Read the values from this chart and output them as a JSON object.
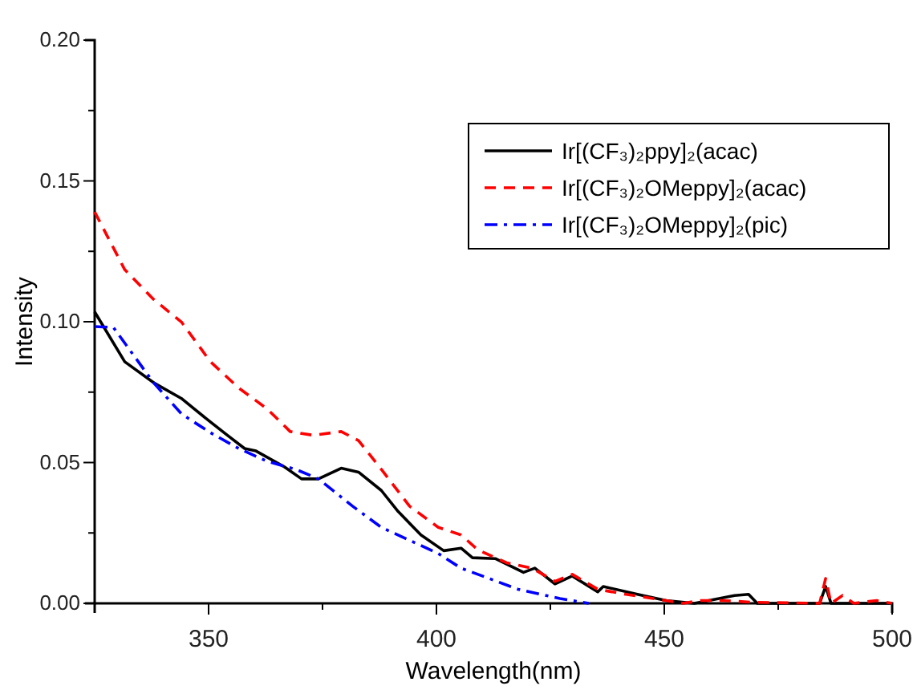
{
  "chart_data": {
    "type": "line",
    "xlabel": "Wavelength(nm)",
    "ylabel": "Intensity",
    "xlim": [
      325,
      500
    ],
    "ylim": [
      0,
      0.2
    ],
    "xticks": [
      {
        "value": 325,
        "label": null
      },
      350,
      {
        "value": 375,
        "label": null
      },
      400,
      {
        "value": 425,
        "label": null
      },
      450,
      {
        "value": 475,
        "label": null
      },
      500
    ],
    "yticks": [
      {
        "value": 0,
        "label": "0.00"
      },
      {
        "value": 0.025,
        "label": null
      },
      {
        "value": 0.05,
        "label": "0.05"
      },
      {
        "value": 0.075,
        "label": null
      },
      {
        "value": 0.1,
        "label": "0.10"
      },
      {
        "value": 0.125,
        "label": null
      },
      {
        "value": 0.15,
        "label": "0.15"
      },
      {
        "value": 0.175,
        "label": null
      },
      {
        "value": 0.2,
        "label": "0.20"
      }
    ],
    "grid": false,
    "legend": "top right",
    "marker": "none",
    "series": [
      {
        "name": "Ir[(CF₃)₂ppy]₂(acac)",
        "color": "#000000",
        "line_style": "solid",
        "x": [
          325,
          331.6,
          337.9,
          344,
          350.4,
          354.1,
          357.9,
          360.4,
          366.6,
          370.4,
          374.1,
          379.1,
          382.9,
          387.9,
          391.6,
          396.6,
          401.6,
          405.4,
          407.9,
          412.9,
          419.1,
          421.6,
          426,
          429.8,
          435.4,
          436.6,
          444.1,
          450.4,
          456.6,
          465.4,
          468.5,
          470.4,
          484.1,
          485.4,
          486.6,
          500
        ],
        "values": [
          0.1035,
          0.0858,
          0.0784,
          0.0728,
          0.0644,
          0.0597,
          0.055,
          0.0541,
          0.0485,
          0.0442,
          0.0442,
          0.048,
          0.0466,
          0.0401,
          0.0326,
          0.0243,
          0.0187,
          0.0196,
          0.0162,
          0.0159,
          0.011,
          0.0125,
          0.0069,
          0.0097,
          0.0041,
          0.006,
          0.0032,
          0.001,
          0,
          0.0028,
          0.0032,
          0,
          0,
          0.006,
          0,
          0
        ]
      },
      {
        "name": "Ir[(CF₃)₂OMeppy]₂(acac)",
        "color": "#ff0000",
        "line_style": "dashed",
        "x": [
          325,
          331.6,
          337.9,
          344.1,
          350.4,
          356.6,
          362.9,
          367.9,
          372.9,
          379.1,
          382.9,
          387.9,
          394.1,
          400.4,
          405.4,
          409.1,
          415.4,
          421,
          426,
          429.8,
          435.4,
          441.6,
          450.4,
          454.1,
          457.9,
          462.9,
          469.1,
          484.1,
          485.4,
          486.6,
          489.1,
          491.6,
          496.6,
          500
        ],
        "values": [
          0.139,
          0.1185,
          0.108,
          0.0998,
          0.0858,
          0.0765,
          0.069,
          0.061,
          0.0597,
          0.061,
          0.0578,
          0.0476,
          0.0345,
          0.027,
          0.0243,
          0.019,
          0.0144,
          0.0125,
          0.0078,
          0.0103,
          0.005,
          0.0032,
          0.001,
          0,
          0.001,
          0.001,
          0.0004,
          0,
          0.0088,
          0,
          0.0028,
          0,
          0.001,
          0
        ]
      },
      {
        "name": "Ir[(CF₃)₂OMeppy]₂(pic)",
        "color": "#0000ff",
        "line_style": "dashdot",
        "x": [
          325,
          329.1,
          337.9,
          344.1,
          350.4,
          356.6,
          362.9,
          369.1,
          374.1,
          381.6,
          387.9,
          394.1,
          400.4,
          405.4,
          411.6,
          417.9,
          427.1,
          433.4
        ],
        "values": [
          0.0983,
          0.098,
          0.0784,
          0.0672,
          0.0606,
          0.055,
          0.0504,
          0.0476,
          0.0442,
          0.0345,
          0.027,
          0.0224,
          0.0177,
          0.0125,
          0.0088,
          0.005,
          0.0017,
          0
        ]
      }
    ]
  }
}
